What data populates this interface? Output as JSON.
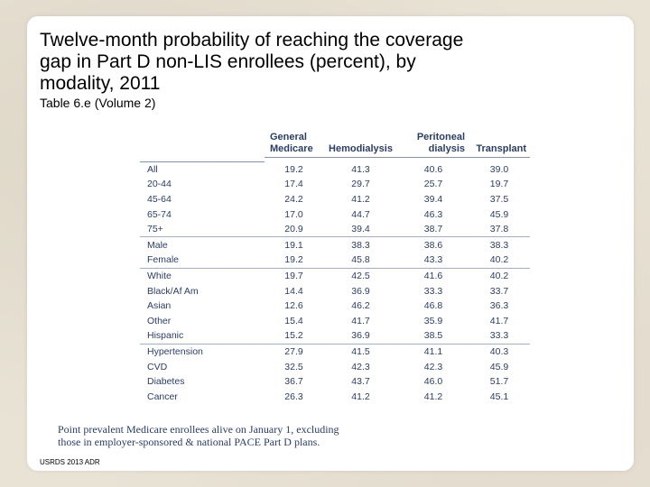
{
  "slide": {
    "title": "Twelve-month probability of reaching the coverage gap in Part D non-LIS enrollees (percent), by modality, 2011",
    "subtitle": "Table 6.e (Volume 2)",
    "note_line1": "Point prevalent Medicare enrollees alive on January 1, excluding",
    "note_line2": "those in employer-sponsored & national PACE Part D plans.",
    "source": "USRDS 2013 ADR"
  },
  "table": {
    "headers": {
      "col1_line1": "General",
      "col1_line2": "Medicare",
      "col2": "Hemodialysis",
      "col3_line1": "Peritoneal",
      "col3_line2": "dialysis",
      "col4": "Transplant"
    },
    "rows": [
      {
        "label": "All",
        "values": [
          "19.2",
          "41.3",
          "40.6",
          "39.0"
        ]
      },
      {
        "label": "20-44",
        "values": [
          "17.4",
          "29.7",
          "25.7",
          "19.7"
        ]
      },
      {
        "label": "45-64",
        "values": [
          "24.2",
          "41.2",
          "39.4",
          "37.5"
        ]
      },
      {
        "label": "65-74",
        "values": [
          "17.0",
          "44.7",
          "46.3",
          "45.9"
        ]
      },
      {
        "label": "75+",
        "values": [
          "20.9",
          "39.4",
          "38.7",
          "37.8"
        ]
      },
      {
        "label": "Male",
        "values": [
          "19.1",
          "38.3",
          "38.6",
          "38.3"
        ]
      },
      {
        "label": "Female",
        "values": [
          "19.2",
          "45.8",
          "43.3",
          "40.2"
        ]
      },
      {
        "label": "White",
        "values": [
          "19.7",
          "42.5",
          "41.6",
          "40.2"
        ]
      },
      {
        "label": "Black/Af Am",
        "values": [
          "14.4",
          "36.9",
          "33.3",
          "33.7"
        ]
      },
      {
        "label": "Asian",
        "values": [
          "12.6",
          "46.2",
          "46.8",
          "36.3"
        ]
      },
      {
        "label": "Other",
        "values": [
          "15.4",
          "41.7",
          "35.9",
          "41.7"
        ]
      },
      {
        "label": "Hispanic",
        "values": [
          "15.2",
          "36.9",
          "38.5",
          "33.3"
        ]
      },
      {
        "label": "Hypertension",
        "values": [
          "27.9",
          "41.5",
          "41.1",
          "40.3"
        ]
      },
      {
        "label": "CVD",
        "values": [
          "32.5",
          "42.3",
          "42.3",
          "45.9"
        ]
      },
      {
        "label": "Diabetes",
        "values": [
          "36.7",
          "43.7",
          "46.0",
          "51.7"
        ]
      },
      {
        "label": "Cancer",
        "values": [
          "26.3",
          "41.2",
          "41.2",
          "45.1"
        ]
      }
    ]
  }
}
